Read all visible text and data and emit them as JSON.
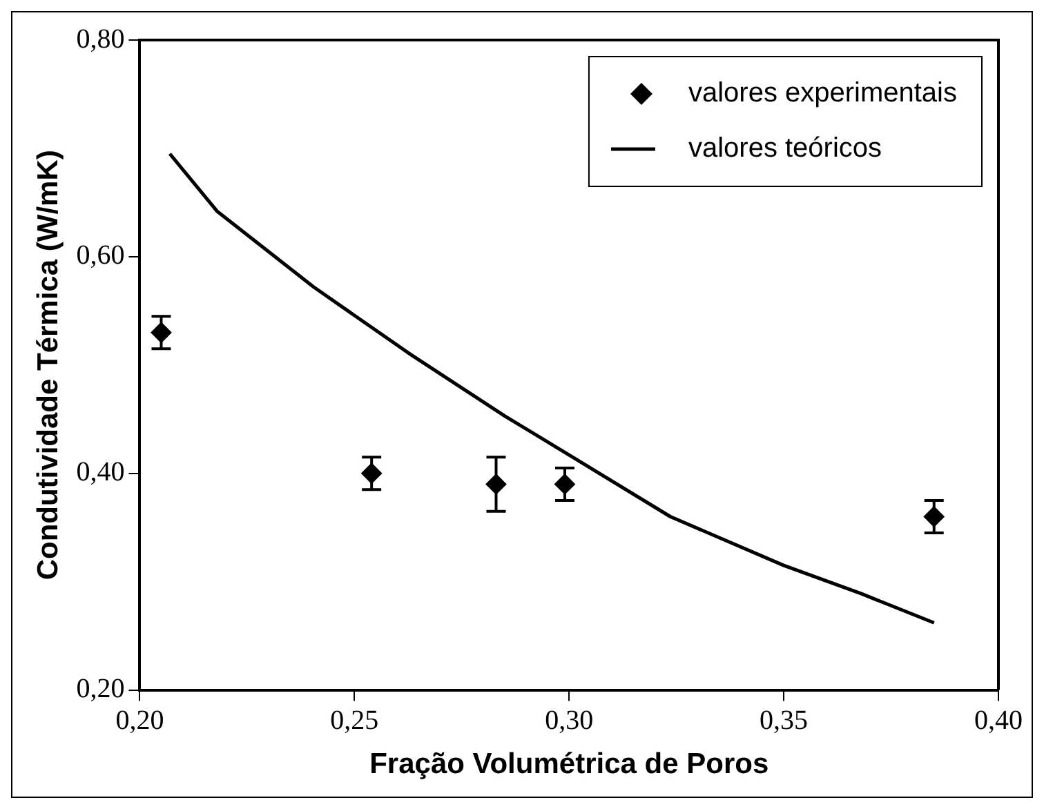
{
  "chart_data": {
    "type": "scatter",
    "xlabel": "Fração Volumétrica de Poros",
    "ylabel": "Condutividade Térmica (W/mK)",
    "xlim": [
      0.2,
      0.4
    ],
    "xticks": [
      {
        "value": 0.2,
        "label": "0,20"
      },
      {
        "value": 0.25,
        "label": "0,25"
      },
      {
        "value": 0.3,
        "label": "0,30"
      },
      {
        "value": 0.35,
        "label": "0,35"
      },
      {
        "value": 0.4,
        "label": "0,40"
      }
    ],
    "ylim": [
      0.2,
      0.8
    ],
    "yticks": [
      {
        "value": 0.2,
        "label": "0,20"
      },
      {
        "value": 0.4,
        "label": "0,40"
      },
      {
        "value": 0.6,
        "label": "0,60"
      },
      {
        "value": 0.8,
        "label": "0,80"
      }
    ],
    "grid": false,
    "legend": "top right",
    "series": [
      {
        "name": "valores experimentais",
        "marker": "diamond",
        "color": "#000000",
        "x": [
          0.205,
          0.254,
          0.283,
          0.299,
          0.385
        ],
        "values": [
          0.53,
          0.4,
          0.39,
          0.39,
          0.36
        ],
        "errors": [
          0.015,
          0.015,
          0.025,
          0.015,
          0.015
        ]
      },
      {
        "name": "valores teóricos",
        "type": "line",
        "marker": "none",
        "color": "#000000",
        "x": [
          0.207,
          0.218,
          0.2405,
          0.263,
          0.285,
          0.3,
          0.3236,
          0.35,
          0.368,
          0.385
        ],
        "values": [
          0.695,
          0.642,
          0.572,
          0.51,
          0.453,
          0.417,
          0.36,
          0.315,
          0.289,
          0.262
        ]
      }
    ]
  }
}
